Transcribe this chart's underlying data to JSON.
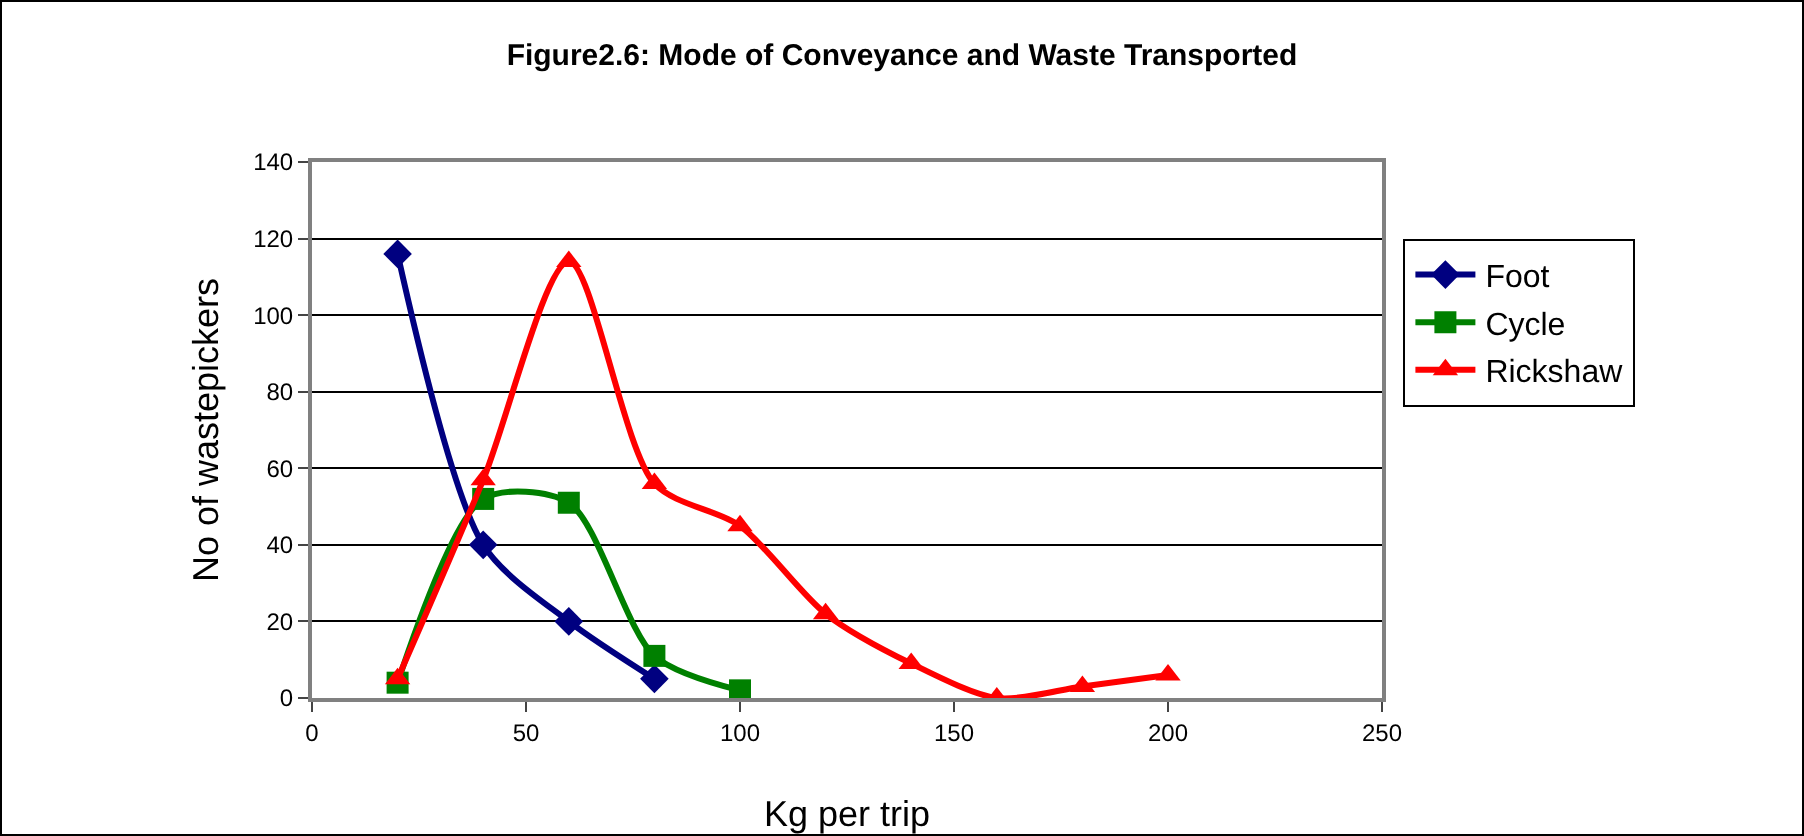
{
  "chart_data": {
    "type": "line",
    "title": "Figure2.6: Mode of Conveyance and Waste Transported",
    "xlabel": "Kg per trip",
    "ylabel": "No of wastepickers",
    "xlim": [
      0,
      250
    ],
    "xticks": [
      0,
      50,
      100,
      150,
      200,
      250
    ],
    "ylim": [
      0,
      140
    ],
    "yticks": [
      0,
      20,
      40,
      60,
      80,
      100,
      120,
      140
    ],
    "grid": "y",
    "legend": "right",
    "line_style": "solid",
    "series": [
      {
        "name": "Foot",
        "color": "#000080",
        "marker": "diamond",
        "x": [
          20,
          40,
          60,
          80
        ],
        "values": [
          116,
          40,
          20,
          5
        ]
      },
      {
        "name": "Cycle",
        "color": "#008000",
        "marker": "square",
        "x": [
          20,
          40,
          60,
          80,
          100
        ],
        "values": [
          4,
          52,
          51,
          11,
          2
        ]
      },
      {
        "name": "Rickshaw",
        "color": "#ff0000",
        "marker": "triangle",
        "x": [
          20,
          40,
          60,
          80,
          100,
          120,
          140,
          160,
          180,
          200
        ],
        "values": [
          5,
          57,
          114,
          56,
          45,
          22,
          9,
          0,
          3,
          6
        ]
      }
    ]
  }
}
